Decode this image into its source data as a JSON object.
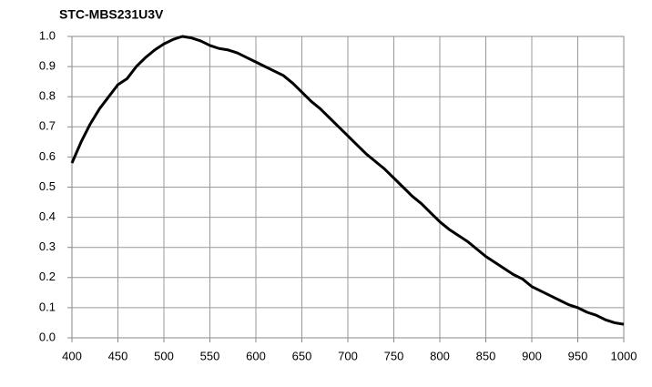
{
  "chart_data": {
    "type": "line",
    "title": "STC-MBS231U3V",
    "x": [
      400,
      410,
      420,
      430,
      440,
      450,
      460,
      470,
      480,
      490,
      500,
      510,
      520,
      530,
      540,
      550,
      560,
      570,
      580,
      590,
      600,
      610,
      620,
      630,
      640,
      650,
      660,
      670,
      680,
      690,
      700,
      710,
      720,
      730,
      740,
      750,
      760,
      770,
      780,
      790,
      800,
      810,
      820,
      830,
      840,
      850,
      860,
      870,
      880,
      890,
      900,
      910,
      920,
      930,
      940,
      950,
      960,
      970,
      980,
      990,
      1000
    ],
    "series": [
      {
        "color": "#000000",
        "values": [
          0.58,
          0.65,
          0.71,
          0.76,
          0.8,
          0.84,
          0.86,
          0.9,
          0.93,
          0.955,
          0.975,
          0.99,
          1.0,
          0.995,
          0.985,
          0.97,
          0.96,
          0.955,
          0.945,
          0.93,
          0.915,
          0.9,
          0.885,
          0.87,
          0.845,
          0.815,
          0.785,
          0.76,
          0.73,
          0.7,
          0.67,
          0.64,
          0.61,
          0.585,
          0.56,
          0.53,
          0.5,
          0.47,
          0.445,
          0.415,
          0.385,
          0.36,
          0.34,
          0.32,
          0.295,
          0.27,
          0.25,
          0.23,
          0.21,
          0.195,
          0.17,
          0.155,
          0.14,
          0.125,
          0.11,
          0.1,
          0.085,
          0.075,
          0.06,
          0.05,
          0.045
        ]
      }
    ],
    "xlim": [
      400,
      1000
    ],
    "xticks": [
      400,
      450,
      500,
      550,
      600,
      650,
      700,
      750,
      800,
      850,
      900,
      950,
      1000
    ],
    "ylim": [
      0,
      1
    ],
    "yticks": [
      {
        "value": 0,
        "label": "0.0"
      },
      0.1,
      0.2,
      0.3,
      0.4,
      0.5,
      0.6,
      0.7,
      0.8,
      0.9,
      {
        "value": 1,
        "label": "1.0"
      }
    ],
    "grid": true
  }
}
